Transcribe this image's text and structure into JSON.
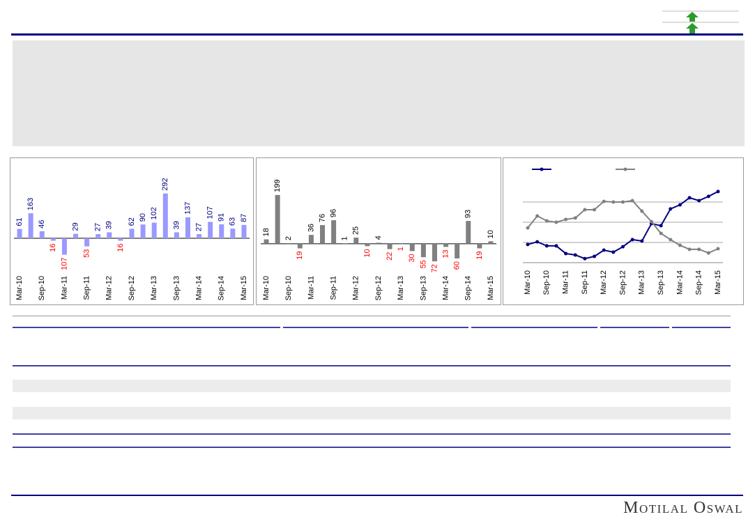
{
  "chart_data": [
    {
      "type": "bar",
      "color": "#9999ff",
      "positive_label_color": "#000080",
      "negative_label_color": "#ff0000",
      "categories": [
        "Mar-10",
        null,
        "Sep-10",
        null,
        "Mar-11",
        null,
        "Sep-11",
        null,
        "Mar-12",
        null,
        "Sep-12",
        null,
        "Mar-13",
        null,
        "Sep-13",
        null,
        "Mar-14",
        null,
        "Sep-14",
        null,
        "Mar-15"
      ],
      "values": [
        61,
        163,
        46,
        -16,
        -107,
        29,
        -53,
        27,
        39,
        -16,
        62,
        90,
        102,
        292,
        39,
        137,
        27,
        107,
        91,
        63,
        87
      ],
      "value_labels": [
        "61",
        "163",
        "46",
        "16",
        "107",
        "29",
        "53",
        "27",
        "39",
        "16",
        "62",
        "90",
        "102",
        "292",
        "39",
        "137",
        "27",
        "107",
        "91",
        "63",
        "87"
      ],
      "ylim": [
        -150,
        300
      ]
    },
    {
      "type": "bar",
      "color": "#808080",
      "positive_label_color": "#000000",
      "negative_label_color": "#ff0000",
      "categories": [
        "Mar-10",
        null,
        "Sep-10",
        null,
        "Mar-11",
        null,
        "Sep-11",
        null,
        "Mar-12",
        null,
        "Sep-12",
        null,
        "Mar-13",
        null,
        "Sep-13",
        null,
        "Mar-14",
        null,
        "Sep-14",
        null,
        "Mar-15"
      ],
      "values": [
        18,
        199,
        2,
        -19,
        36,
        76,
        96,
        1,
        25,
        -10,
        4,
        -22,
        -1,
        -30,
        -55,
        -72,
        -13,
        -60,
        93,
        -19,
        10
      ],
      "value_labels": [
        "18",
        "199",
        "2",
        "19",
        "36",
        "76",
        "96",
        "1",
        "25",
        "10",
        "4",
        "22",
        "1",
        "30",
        "55",
        "72",
        "13",
        "60",
        "93",
        "19",
        "10"
      ],
      "ylim": [
        -100,
        210
      ]
    },
    {
      "type": "line",
      "grid": true,
      "categories": [
        "Mar-10",
        null,
        "Sep-10",
        null,
        "Mar-11",
        null,
        "Sep-11",
        null,
        "Mar-12",
        null,
        "Sep-12",
        null,
        "Mar-13",
        null,
        "Sep-13",
        null,
        "Mar-14",
        null,
        "Sep-14",
        null,
        "Mar-15"
      ],
      "ylim": [
        0,
        4
      ],
      "yticks": [
        1,
        2,
        3
      ],
      "series": [
        {
          "color": "#000080",
          "values": [
            0.9,
            1.03,
            0.83,
            0.83,
            0.45,
            0.38,
            0.2,
            0.31,
            0.62,
            0.52,
            0.79,
            1.14,
            1.07,
            1.93,
            1.83,
            2.66,
            2.86,
            3.21,
            3.07,
            3.28,
            3.52
          ]
        },
        {
          "color": "#808080",
          "values": [
            1.72,
            2.31,
            2.07,
            2.0,
            2.14,
            2.21,
            2.62,
            2.62,
            3.03,
            3.0,
            3.0,
            3.07,
            2.55,
            2.03,
            1.45,
            1.14,
            0.86,
            0.66,
            0.66,
            0.48,
            0.69
          ]
        }
      ]
    }
  ],
  "footer": {
    "brand": "Motilal Oswal"
  }
}
